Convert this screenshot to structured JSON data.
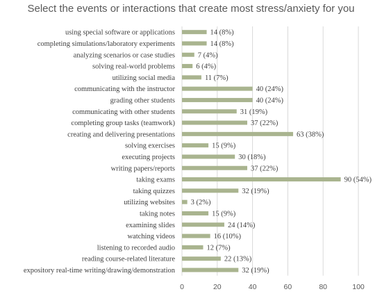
{
  "chart_data": {
    "type": "bar",
    "orientation": "horizontal",
    "title": "Select the events or interactions that create most stress/anxiety for you",
    "categories": [
      "using special software or applications",
      "completing simulations/laboratory experiments",
      "analyzing scenarios or case studies",
      "solving real-world problems",
      "utilizing social media",
      "communicating with the instructor",
      "grading other students",
      "communicating with other students",
      "completing group tasks (teamwork)",
      "creating and delivering presentations",
      "solving exercises",
      "executing projects",
      "writing papers/reports",
      "taking exams",
      "taking quizzes",
      "utilizing websites",
      "taking notes",
      "examining slides",
      "watching videos",
      "listening to recorded audio",
      "reading course-related literature",
      "expository real-time writing/drawing/demonstration"
    ],
    "values": [
      14,
      14,
      7,
      6,
      11,
      40,
      40,
      31,
      37,
      63,
      15,
      30,
      37,
      90,
      32,
      3,
      15,
      24,
      16,
      12,
      22,
      32
    ],
    "data_labels": [
      "14 (8%)",
      "14 (8%)",
      "7 (4%)",
      "6 (4%)",
      "11 (7%)",
      "40 (24%)",
      "40 (24%)",
      "31 (19%)",
      "37 (22%)",
      "63 (38%)",
      "15 (9%)",
      "30 (18%)",
      "37 (22%)",
      "90 (54%)",
      "32 (19%)",
      "3 (2%)",
      "15 (9%)",
      "24 (14%)",
      "16 (10%)",
      "12 (7%)",
      "22 (13%)",
      "32 (19%)"
    ],
    "xlim": [
      0,
      100
    ],
    "xticks": [
      0,
      20,
      40,
      60,
      80,
      100
    ],
    "xtick_labels": [
      "0",
      "20",
      "40",
      "60",
      "80",
      "100"
    ],
    "grid": "vertical",
    "legend": "none",
    "bar_color": "#a9b48f"
  }
}
